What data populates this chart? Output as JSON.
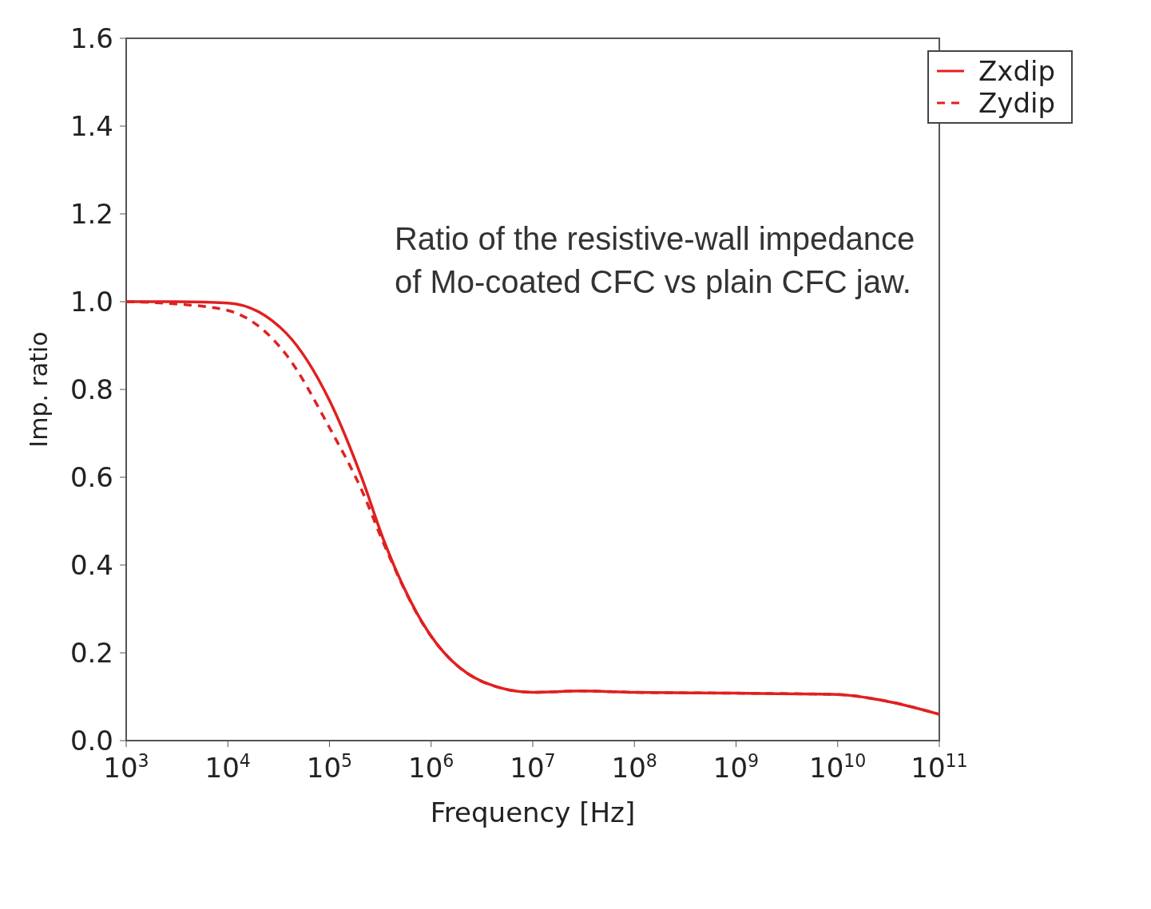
{
  "chart_data": {
    "type": "line",
    "xlabel": "Frequency [Hz]",
    "ylabel": "Imp. ratio",
    "x": [
      1000,
      3000,
      10000,
      37600,
      100000,
      210000,
      340000,
      810000,
      3300000,
      10000000,
      30000000,
      100000000,
      1000000000,
      10000000000,
      30000000000,
      100000000000
    ],
    "series": [
      {
        "name": "Zxdip",
        "color": "#e02020",
        "line_style": "solid",
        "values": [
          1.0,
          1.0,
          0.997,
          0.928,
          0.775,
          0.596,
          0.458,
          0.271,
          0.133,
          0.11,
          0.113,
          0.11,
          0.108,
          0.105,
          0.09,
          0.06
        ]
      },
      {
        "name": "Zydip",
        "color": "#e02020",
        "line_style": "dashed",
        "values": [
          1.0,
          0.995,
          0.98,
          0.879,
          0.713,
          0.568,
          0.45,
          0.27,
          0.133,
          0.11,
          0.113,
          0.11,
          0.108,
          0.105,
          0.09,
          0.06
        ]
      }
    ],
    "log": "x",
    "xlim": [
      1000,
      100000000000
    ],
    "xticks": [
      {
        "value": 1000,
        "label": "10$^{3}$"
      },
      {
        "value": 10000,
        "label": "10$^{4}$"
      },
      {
        "value": 100000,
        "label": "10$^{5}$"
      },
      {
        "value": 1000000,
        "label": "10$^{6}$"
      },
      {
        "value": 10000000,
        "label": "10$^{7}$"
      },
      {
        "value": 100000000,
        "label": "10$^{8}$"
      },
      {
        "value": 1000000000,
        "label": "10$^{9}$"
      },
      {
        "value": 10000000000,
        "label": "10$^{10}$"
      },
      {
        "value": 100000000000,
        "label": "10$^{11}$"
      }
    ],
    "ylim": [
      0,
      1.6
    ],
    "yticks": [
      {
        "value": 0,
        "label": "0.0"
      },
      0.2,
      0.4,
      0.6,
      0.8,
      {
        "value": 1,
        "label": "1.0"
      },
      1.2,
      1.4,
      1.6
    ],
    "grid": false,
    "legend": "top right",
    "annotations": [
      "Ratio of the resistive-wall impedance of Mo-coated CFC vs plain CFC jaw."
    ]
  }
}
